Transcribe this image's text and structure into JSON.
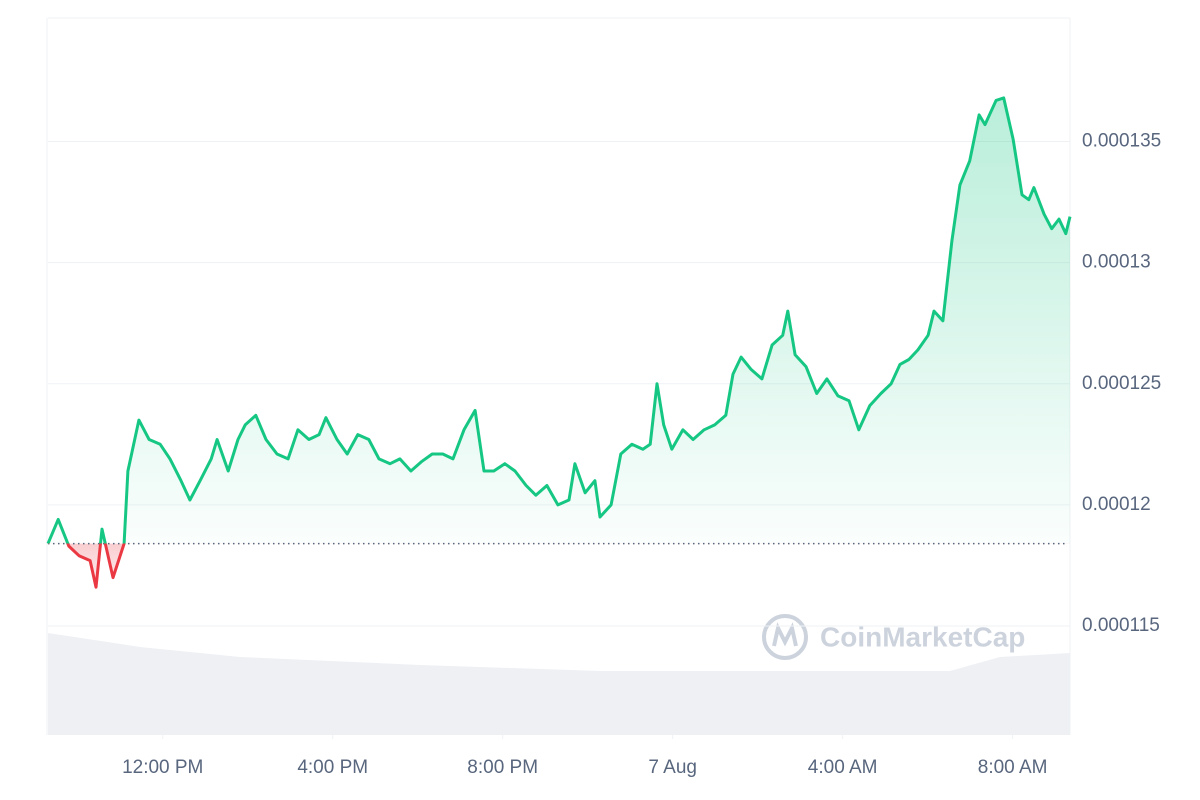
{
  "chart_data": {
    "type": "line",
    "x": [
      9.3,
      9.54,
      9.79,
      10.03,
      10.29,
      10.43,
      10.57,
      10.83,
      11.09,
      11.18,
      11.44,
      11.68,
      11.94,
      12.17,
      12.43,
      12.64,
      12.88,
      13.14,
      13.28,
      13.54,
      13.77,
      13.94,
      14.19,
      14.43,
      14.69,
      14.95,
      15.18,
      15.44,
      15.68,
      15.84,
      16.1,
      16.34,
      16.59,
      16.85,
      17.09,
      17.35,
      17.58,
      17.84,
      18.1,
      18.34,
      18.59,
      18.83,
      19.09,
      19.35,
      19.56,
      19.79,
      20.05,
      20.29,
      20.55,
      20.78,
      21.04,
      21.3,
      21.56,
      21.7,
      21.94,
      22.17,
      22.29,
      22.55,
      22.78,
      23.04,
      23.3,
      23.47,
      23.63,
      23.79,
      23.98,
      24.24,
      24.48,
      24.74,
      24.99,
      25.25,
      25.42,
      25.61,
      25.84,
      26.1,
      26.34,
      26.59,
      26.71,
      26.88,
      27.14,
      27.39,
      27.63,
      27.89,
      28.15,
      28.38,
      28.64,
      28.9,
      29.14,
      29.35,
      29.56,
      29.77,
      30.01,
      30.15,
      30.36,
      30.57,
      30.76,
      30.99,
      31.21,
      31.35,
      31.61,
      31.79,
      32.01,
      32.22,
      32.38,
      32.5,
      32.74,
      32.92,
      33.09,
      33.25,
      33.35
    ],
    "values": [
      0.0001184,
      0.0001194,
      0.0001183,
      0.0001179,
      0.0001177,
      0.0001166,
      0.000119,
      0.000117,
      0.0001184,
      0.0001214,
      0.0001235,
      0.0001227,
      0.0001225,
      0.0001219,
      0.000121,
      0.0001202,
      0.000121,
      0.0001219,
      0.0001227,
      0.0001214,
      0.0001227,
      0.0001233,
      0.0001237,
      0.0001227,
      0.0001221,
      0.0001219,
      0.0001231,
      0.0001227,
      0.0001229,
      0.0001236,
      0.0001227,
      0.0001221,
      0.0001229,
      0.0001227,
      0.0001219,
      0.0001217,
      0.0001219,
      0.0001214,
      0.0001218,
      0.0001221,
      0.0001221,
      0.0001219,
      0.0001231,
      0.0001239,
      0.0001214,
      0.0001214,
      0.0001217,
      0.0001214,
      0.0001208,
      0.0001204,
      0.0001208,
      0.00012,
      0.0001202,
      0.0001217,
      0.0001205,
      0.000121,
      0.0001195,
      0.00012,
      0.0001221,
      0.0001225,
      0.0001223,
      0.0001225,
      0.000125,
      0.0001233,
      0.0001223,
      0.0001231,
      0.0001227,
      0.0001231,
      0.0001233,
      0.0001237,
      0.0001254,
      0.0001261,
      0.0001256,
      0.0001252,
      0.0001266,
      0.000127,
      0.000128,
      0.0001262,
      0.0001257,
      0.0001246,
      0.0001252,
      0.0001245,
      0.0001243,
      0.0001231,
      0.0001241,
      0.0001246,
      0.000125,
      0.0001258,
      0.000126,
      0.0001264,
      0.000127,
      0.000128,
      0.0001276,
      0.0001309,
      0.0001332,
      0.0001342,
      0.0001361,
      0.0001357,
      0.0001367,
      0.0001368,
      0.0001351,
      0.0001328,
      0.0001326,
      0.0001331,
      0.000132,
      0.0001314,
      0.0001318,
      0.0001312,
      0.0001319
    ],
    "baseline": 0.0001184,
    "up_color": "#16c784",
    "down_color": "#ea3943",
    "xlim": [
      9.3,
      33.35
    ],
    "xticks": [
      {
        "value": 12,
        "label": "12:00 PM"
      },
      {
        "value": 16,
        "label": "4:00 PM"
      },
      {
        "value": 20,
        "label": "8:00 PM"
      },
      {
        "value": 24,
        "label": "7 Aug"
      },
      {
        "value": 28,
        "label": "4:00 AM"
      },
      {
        "value": 32,
        "label": "8:00 AM"
      }
    ],
    "ylim": [
      0.0001105,
      0.0001401
    ],
    "yticks": [
      0.000115,
      0.00012,
      0.000125,
      0.00013,
      0.000135
    ],
    "grid": true,
    "watermark": "CoinMarketCap"
  }
}
